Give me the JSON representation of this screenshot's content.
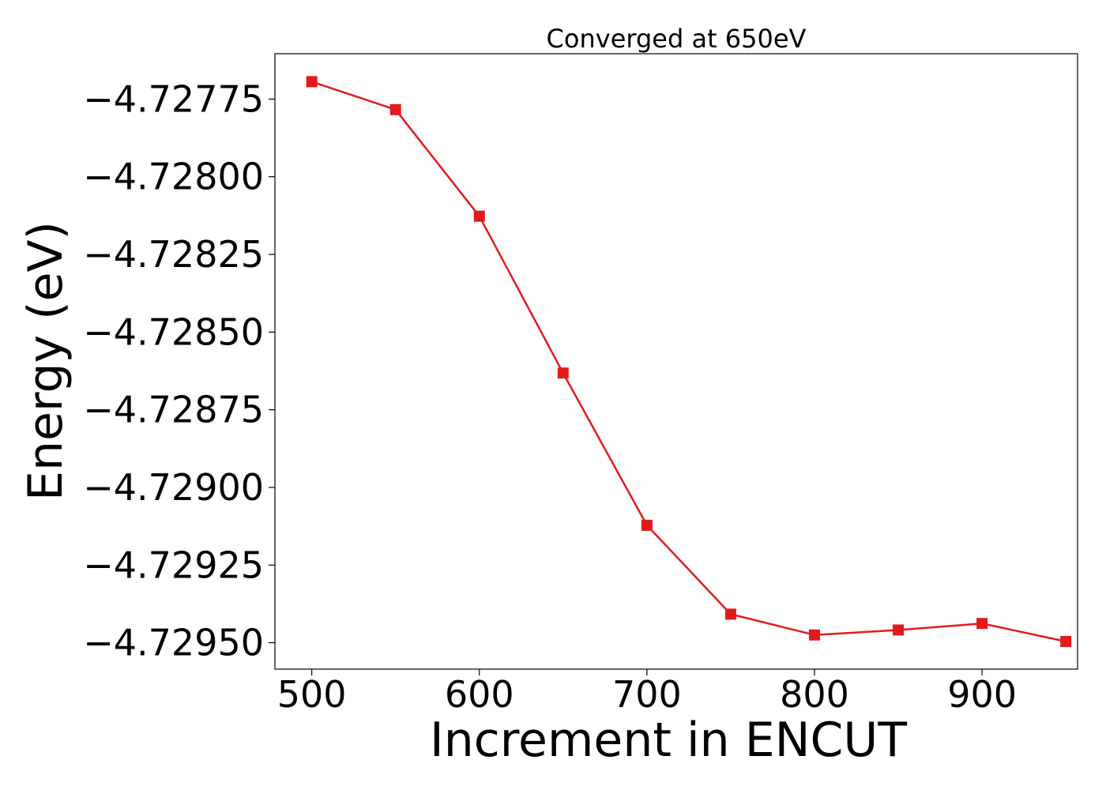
{
  "chart_data": {
    "type": "line",
    "title": "Converged at 650eV",
    "xlabel": "Increment in ENCUT",
    "ylabel": "Energy (eV)",
    "x": [
      500,
      550,
      600,
      650,
      700,
      750,
      800,
      850,
      900,
      950
    ],
    "series": [
      {
        "values": [
          -4.727694,
          -4.727784,
          -4.728127,
          -4.728632,
          -4.729122,
          -4.729408,
          -4.729475,
          -4.729459,
          -4.729438,
          -4.729496
        ],
        "color": "#e31a1c",
        "marker": "square"
      }
    ],
    "xlim": [
      478,
      957
    ],
    "ylim": [
      -4.729585,
      -4.727604
    ],
    "xticks": [
      500,
      600,
      700,
      800,
      900
    ],
    "xtick_labels": [
      "500",
      "600",
      "700",
      "800",
      "900"
    ],
    "yticks": [
      -4.72775,
      -4.728,
      -4.72825,
      -4.7285,
      -4.72875,
      -4.729,
      -4.72925,
      -4.7295
    ],
    "ytick_labels": [
      "−4.72775",
      "−4.72800",
      "−4.72825",
      "−4.72850",
      "−4.72875",
      "−4.72900",
      "−4.72925",
      "−4.72950"
    ],
    "grid": false,
    "legend": "none"
  }
}
